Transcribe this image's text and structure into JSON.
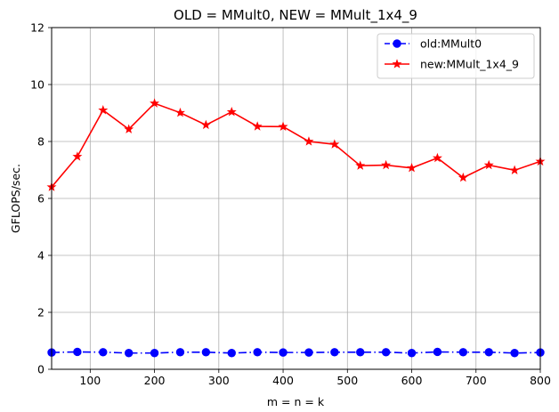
{
  "chart_data": {
    "type": "line",
    "title": "OLD = MMult0, NEW = MMult_1x4_9",
    "xlabel": "m = n = k",
    "ylabel": "GFLOPS/sec.",
    "xlim": [
      40,
      800
    ],
    "ylim": [
      0,
      12
    ],
    "xticks": [
      100,
      200,
      300,
      400,
      500,
      600,
      700,
      800
    ],
    "yticks": [
      0,
      2,
      4,
      6,
      8,
      10,
      12
    ],
    "grid": true,
    "legend_position": "upper right",
    "x": [
      40,
      80,
      120,
      160,
      200,
      240,
      280,
      320,
      360,
      400,
      440,
      480,
      520,
      560,
      600,
      640,
      680,
      720,
      760,
      800
    ],
    "series": [
      {
        "name": "old:MMult0",
        "color": "#0000ff",
        "line_style": "dash-dot",
        "marker": "circle",
        "values": [
          0.59,
          0.61,
          0.6,
          0.57,
          0.57,
          0.6,
          0.6,
          0.57,
          0.6,
          0.59,
          0.59,
          0.6,
          0.6,
          0.6,
          0.57,
          0.61,
          0.6,
          0.6,
          0.57,
          0.59
        ]
      },
      {
        "name": "new:MMult_1x4_9",
        "color": "#ff0000",
        "line_style": "solid",
        "marker": "star",
        "values": [
          6.4,
          7.47,
          9.1,
          8.43,
          9.34,
          9.01,
          8.58,
          9.04,
          8.53,
          8.52,
          8.0,
          7.9,
          7.15,
          7.17,
          7.07,
          7.42,
          6.73,
          7.17,
          6.99,
          7.3
        ]
      }
    ]
  }
}
